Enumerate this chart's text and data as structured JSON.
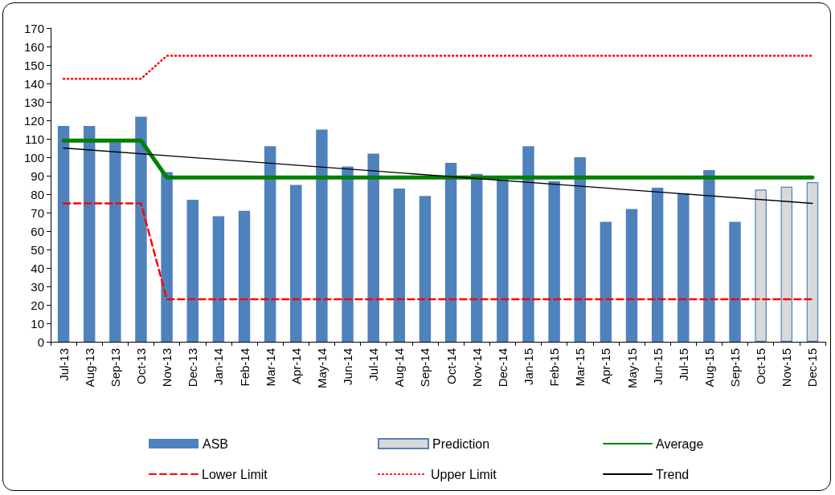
{
  "chart_data": {
    "type": "bar",
    "categories": [
      "Jul-13",
      "Aug-13",
      "Sep-13",
      "Oct-13",
      "Nov-13",
      "Dec-13",
      "Jan-14",
      "Feb-14",
      "Mar-14",
      "Apr-14",
      "May-14",
      "Jun-14",
      "Jul-14",
      "Aug-14",
      "Sep-14",
      "Oct-14",
      "Nov-14",
      "Dec-14",
      "Jan-15",
      "Feb-15",
      "Mar-15",
      "Apr-15",
      "May-15",
      "Jun-15",
      "Jul-15",
      "Aug-15",
      "Sep-15",
      "Oct-15",
      "Nov-15",
      "Dec-15"
    ],
    "series": [
      {
        "name": "ASB",
        "color": "#4f81bd",
        "values": [
          117,
          117,
          108,
          122,
          92,
          77,
          68,
          71,
          106,
          85,
          115,
          95,
          102,
          83,
          79,
          97,
          91,
          88,
          106,
          87,
          100,
          65,
          72,
          83.5,
          80.5,
          93,
          65,
          null,
          null,
          null
        ]
      },
      {
        "name": "Prediction",
        "color": "#d9d9d9",
        "values": [
          null,
          null,
          null,
          null,
          null,
          null,
          null,
          null,
          null,
          null,
          null,
          null,
          null,
          null,
          null,
          null,
          null,
          null,
          null,
          null,
          null,
          null,
          null,
          null,
          null,
          null,
          null,
          82.5,
          84,
          86.5
        ]
      },
      {
        "name": "Average",
        "type": "line",
        "color": "#008000",
        "line_style": "solid",
        "values": [
          109,
          109,
          109,
          109,
          89,
          89,
          89,
          89,
          89,
          89,
          89,
          89,
          89,
          89,
          89,
          89,
          89,
          89,
          89,
          89,
          89,
          89,
          89,
          89,
          89,
          89,
          89,
          89,
          89,
          89
        ]
      },
      {
        "name": "Lower Limit",
        "type": "line",
        "color": "#ff0000",
        "line_style": "dashed",
        "values": [
          75,
          75,
          75,
          75,
          23,
          23,
          23,
          23,
          23,
          23,
          23,
          23,
          23,
          23,
          23,
          23,
          23,
          23,
          23,
          23,
          23,
          23,
          23,
          23,
          23,
          23,
          23,
          23,
          23,
          23
        ]
      },
      {
        "name": "Upper Limit",
        "type": "line",
        "color": "#ff0000",
        "line_style": "dotted",
        "values": [
          142.5,
          142.5,
          142.5,
          142.5,
          155,
          155,
          155,
          155,
          155,
          155,
          155,
          155,
          155,
          155,
          155,
          155,
          155,
          155,
          155,
          155,
          155,
          155,
          155,
          155,
          155,
          155,
          155,
          155,
          155,
          155
        ]
      },
      {
        "name": "Trend",
        "type": "line",
        "color": "#000000",
        "line_style": "solid",
        "x": [
          "Jul-13",
          "Dec-15"
        ],
        "values": [
          105,
          75
        ]
      }
    ],
    "ylim": [
      0,
      170
    ],
    "yticks": [
      0,
      10,
      20,
      30,
      40,
      50,
      60,
      70,
      80,
      90,
      100,
      110,
      120,
      130,
      140,
      150,
      160,
      170
    ],
    "grid": false,
    "legend": "bottom",
    "marker": "none"
  }
}
